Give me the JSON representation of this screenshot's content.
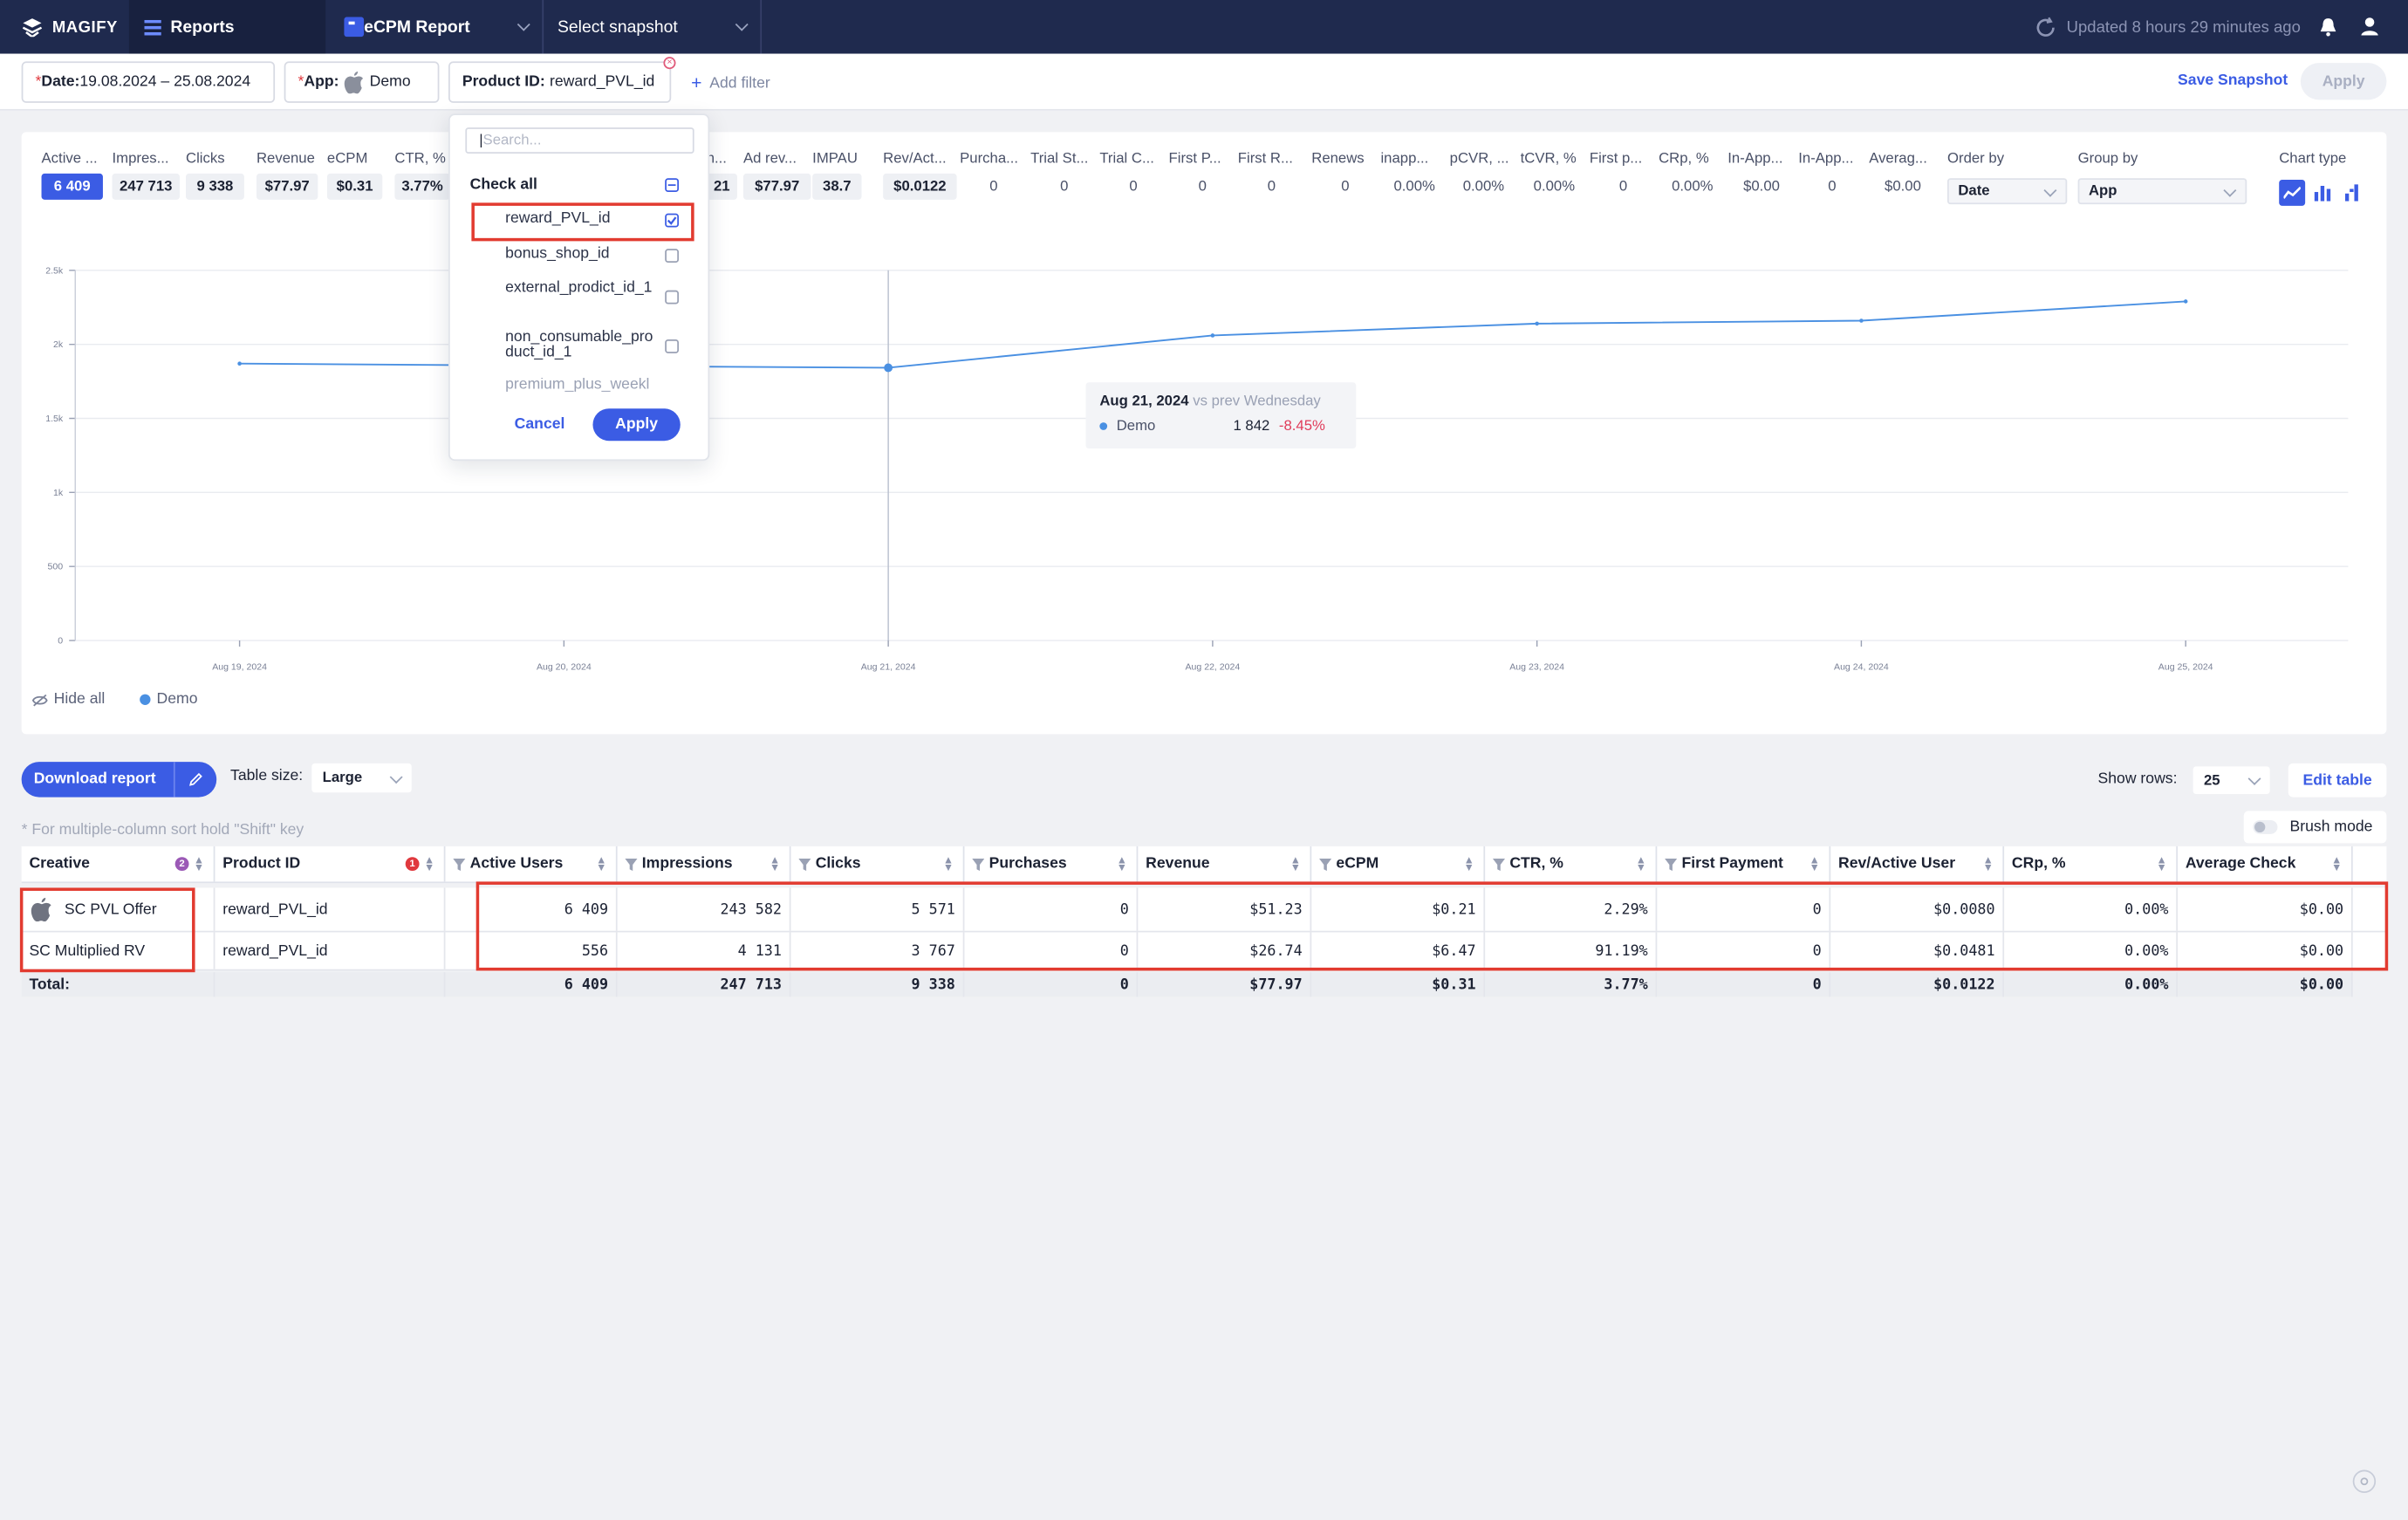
{
  "nav": {
    "brand": "MAGIFY",
    "reports": "Reports",
    "report_name": "eCPM Report",
    "snapshot": "Select snapshot",
    "updated": "Updated 8 hours 29 minutes ago"
  },
  "filters": {
    "date_label": "Date:",
    "date_value": "19.08.2024 – 25.08.2024",
    "app_label": "App:",
    "app_value": "Demo",
    "product_label": "Product ID:",
    "product_value": "reward_PVL_id",
    "add_filter": "Add filter",
    "save_snapshot": "Save Snapshot",
    "apply": "Apply"
  },
  "metrics": [
    {
      "label": "Active ...",
      "value": "6 409"
    },
    {
      "label": "Impres...",
      "value": "247 713"
    },
    {
      "label": "Clicks",
      "value": "9 338"
    },
    {
      "label": "Revenue",
      "value": "$77.97"
    },
    {
      "label": "eCPM",
      "value": "$0.31"
    },
    {
      "label": "CTR, %",
      "value": "3.77%"
    },
    {
      "label": "n...",
      "value": "21"
    },
    {
      "label": "Ad rev...",
      "value": "$77.97"
    },
    {
      "label": "IMPAU",
      "value": "38.7"
    },
    {
      "label": "Rev/Act...",
      "value": "$0.0122"
    },
    {
      "label": "Purcha...",
      "value": "0"
    },
    {
      "label": "Trial St...",
      "value": "0"
    },
    {
      "label": "Trial C...",
      "value": "0"
    },
    {
      "label": "First P...",
      "value": "0"
    },
    {
      "label": "First R...",
      "value": "0"
    },
    {
      "label": "Renews",
      "value": "0"
    },
    {
      "label": "inapp...",
      "value": "0.00%"
    },
    {
      "label": "pCVR, ...",
      "value": "0.00%"
    },
    {
      "label": "tCVR, %",
      "value": "0.00%"
    },
    {
      "label": "First p...",
      "value": "0"
    },
    {
      "label": "CRp, %",
      "value": "0.00%"
    },
    {
      "label": "In-App...",
      "value": "$0.00"
    },
    {
      "label": "In-App...",
      "value": "0"
    },
    {
      "label": "Averag...",
      "value": "$0.00"
    }
  ],
  "controls": {
    "order_by_label": "Order by",
    "order_by": "Date",
    "group_by_label": "Group by",
    "group_by": "App",
    "chart_type_label": "Chart type"
  },
  "chart_data": {
    "type": "line",
    "x": [
      "Aug 19, 2024",
      "Aug 20, 2024",
      "Aug 21, 2024",
      "Aug 22, 2024",
      "Aug 23, 2024",
      "Aug 24, 2024",
      "Aug 25, 2024"
    ],
    "y_ticks": [
      "0",
      "500",
      "1k",
      "1.5k",
      "2k",
      "2.5k"
    ],
    "ylim": [
      0,
      2500
    ],
    "series": [
      {
        "name": "Demo",
        "color": "#4a90e2",
        "values": [
          1870,
          1855,
          1842,
          2060,
          2140,
          2160,
          2290
        ]
      }
    ],
    "tooltip": {
      "date": "Aug 21, 2024",
      "vs": "vs prev Wednesday",
      "series": "Demo",
      "value": "1 842",
      "change": "-8.45%"
    },
    "legend": {
      "hide_all": "Hide all",
      "item": "Demo"
    }
  },
  "dropdown": {
    "placeholder": "Search...",
    "check_all": "Check all",
    "items": [
      {
        "label": "reward_PVL_id",
        "checked": true
      },
      {
        "label": "bonus_shop_id",
        "checked": false
      },
      {
        "label": "external_prodict_id_1",
        "checked": false
      },
      {
        "label": "non_consumable_product_id_1",
        "checked": false
      },
      {
        "label": "premium_plus_weekl",
        "checked": false
      }
    ],
    "cancel": "Cancel",
    "apply": "Apply"
  },
  "table_controls": {
    "download": "Download report",
    "table_size_label": "Table size:",
    "table_size": "Large",
    "show_rows_label": "Show rows:",
    "show_rows": "25",
    "edit_table": "Edit table",
    "hint": "* For multiple-column sort hold \"Shift\" key",
    "brush_mode": "Brush mode"
  },
  "table": {
    "columns": [
      "Creative",
      "Product ID",
      "Active Users",
      "Impressions",
      "Clicks",
      "Purchases",
      "Revenue",
      "eCPM",
      "CTR, %",
      "First Payment",
      "Rev/Active User",
      "CRp, %",
      "Average Check"
    ],
    "sort_badges": {
      "creative": "2",
      "product_id": "1"
    },
    "rows": [
      [
        "SC PVL Offer",
        "reward_PVL_id",
        "6 409",
        "243 582",
        "5 571",
        "0",
        "$51.23",
        "$0.21",
        "2.29%",
        "0",
        "$0.0080",
        "0.00%",
        "$0.00"
      ],
      [
        "SC Multiplied RV",
        "reward_PVL_id",
        "556",
        "4 131",
        "3 767",
        "0",
        "$26.74",
        "$6.47",
        "91.19%",
        "0",
        "$0.0481",
        "0.00%",
        "$0.00"
      ]
    ],
    "total": [
      "Total:",
      "",
      "6 409",
      "247 713",
      "9 338",
      "0",
      "$77.97",
      "$0.31",
      "3.77%",
      "0",
      "$0.0122",
      "0.00%",
      "$0.00"
    ]
  }
}
